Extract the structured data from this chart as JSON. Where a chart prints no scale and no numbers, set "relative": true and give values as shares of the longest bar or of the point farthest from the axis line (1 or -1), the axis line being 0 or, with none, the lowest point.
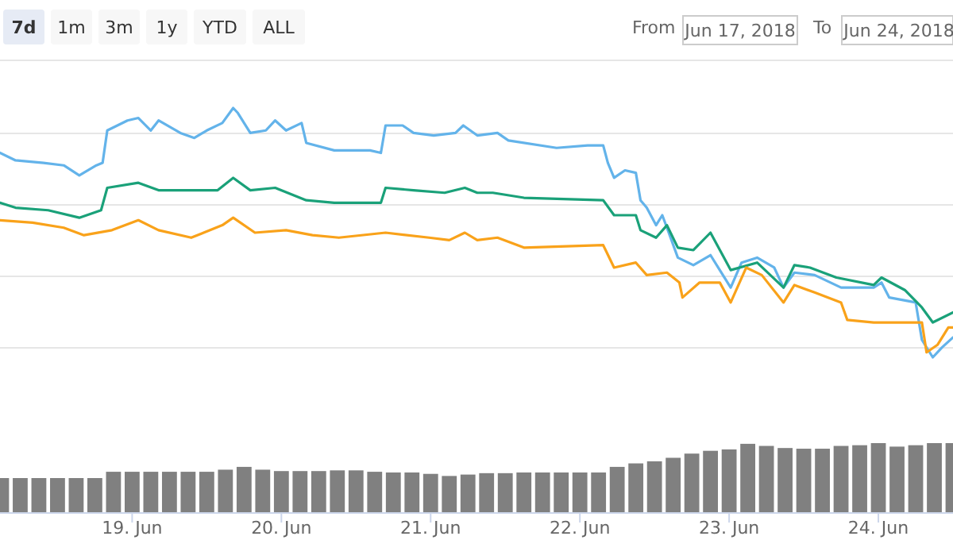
{
  "chart_data": [
    {
      "type": "line",
      "relative": true,
      "grid": true,
      "tick_labels": false,
      "xlim": [
        "2018-06-18T02:45",
        "2018-06-24T12:00"
      ],
      "annotations": [
        "7d",
        "1m",
        "3m",
        "1y",
        "YTD",
        "ALL",
        "From",
        "Jun 17, 2018",
        "To",
        "Jun 24, 2018"
      ],
      "series": [
        {
          "color": "#63b3ea",
          "x": [
            "2018-06-18T02:45",
            "2018-06-18T05:15",
            "2018-06-18T09:45",
            "2018-06-18T13:00",
            "2018-06-18T15:30",
            "2018-06-18T18:15",
            "2018-06-18T19:15",
            "2018-06-18T20:00",
            "2018-06-18T23:15",
            "2018-06-19T01:00",
            "2018-06-19T03:00",
            "2018-06-19T04:15",
            "2018-06-19T07:45",
            "2018-06-19T10:00",
            "2018-06-19T12:00",
            "2018-06-19T14:30",
            "2018-06-19T16:15",
            "2018-06-19T17:00",
            "2018-06-19T19:00",
            "2018-06-19T21:30",
            "2018-06-19T23:00",
            "2018-06-20T00:45",
            "2018-06-20T03:15",
            "2018-06-20T04:00",
            "2018-06-20T08:30",
            "2018-06-20T14:15",
            "2018-06-20T16:00",
            "2018-06-20T16:45",
            "2018-06-20T19:30",
            "2018-06-20T21:15",
            "2018-06-21T00:30",
            "2018-06-21T04:00",
            "2018-06-21T05:15",
            "2018-06-21T07:30",
            "2018-06-21T10:45",
            "2018-06-21T12:30",
            "2018-06-21T20:15",
            "2018-06-22T01:15",
            "2018-06-22T03:45",
            "2018-06-22T04:30",
            "2018-06-22T05:30",
            "2018-06-22T07:15",
            "2018-06-22T09:00",
            "2018-06-22T09:45",
            "2018-06-22T10:45",
            "2018-06-22T12:15",
            "2018-06-22T13:15",
            "2018-06-22T14:00",
            "2018-06-22T15:45",
            "2018-06-22T18:15",
            "2018-06-22T21:00",
            "2018-06-22T22:30",
            "2018-06-23T00:15",
            "2018-06-23T02:00",
            "2018-06-23T04:30",
            "2018-06-23T07:15",
            "2018-06-23T08:45",
            "2018-06-23T10:30",
            "2018-06-23T13:45",
            "2018-06-23T18:00",
            "2018-06-23T23:15",
            "2018-06-24T00:30",
            "2018-06-24T01:45",
            "2018-06-24T06:00",
            "2018-06-24T07:00",
            "2018-06-24T08:45",
            "2018-06-24T10:15",
            "2018-06-24T12:00"
          ],
          "values": [
            0.82,
            0.79,
            0.78,
            0.77,
            0.73,
            0.77,
            0.78,
            0.91,
            0.95,
            0.96,
            0.91,
            0.95,
            0.9,
            0.88,
            0.91,
            0.94,
            1.0,
            0.98,
            0.9,
            0.91,
            0.95,
            0.91,
            0.94,
            0.86,
            0.83,
            0.83,
            0.82,
            0.93,
            0.93,
            0.9,
            0.89,
            0.9,
            0.93,
            0.89,
            0.9,
            0.87,
            0.84,
            0.85,
            0.85,
            0.78,
            0.72,
            0.75,
            0.74,
            0.63,
            0.6,
            0.53,
            0.57,
            0.52,
            0.4,
            0.37,
            0.41,
            0.35,
            0.28,
            0.38,
            0.4,
            0.36,
            0.28,
            0.34,
            0.33,
            0.28,
            0.28,
            0.3,
            0.24,
            0.22,
            0.07,
            0,
            0.04,
            0.08
          ]
        },
        {
          "color": "#1aa179",
          "x": [
            "2018-06-18T02:45",
            "2018-06-18T05:15",
            "2018-06-18T10:30",
            "2018-06-18T15:30",
            "2018-06-18T19:00",
            "2018-06-18T20:00",
            "2018-06-19T01:00",
            "2018-06-19T04:15",
            "2018-06-19T09:30",
            "2018-06-19T13:45",
            "2018-06-19T16:15",
            "2018-06-19T19:00",
            "2018-06-19T23:00",
            "2018-06-20T04:00",
            "2018-06-20T08:30",
            "2018-06-20T16:00",
            "2018-06-20T16:45",
            "2018-06-20T21:15",
            "2018-06-21T02:15",
            "2018-06-21T05:30",
            "2018-06-21T07:30",
            "2018-06-21T10:00",
            "2018-06-21T15:00",
            "2018-06-22T03:45",
            "2018-06-22T05:30",
            "2018-06-22T09:00",
            "2018-06-22T09:45",
            "2018-06-22T12:15",
            "2018-06-22T14:00",
            "2018-06-22T15:45",
            "2018-06-22T18:15",
            "2018-06-22T21:00",
            "2018-06-23T00:15",
            "2018-06-23T04:30",
            "2018-06-23T08:45",
            "2018-06-23T10:30",
            "2018-06-23T13:00",
            "2018-06-23T17:15",
            "2018-06-23T23:15",
            "2018-06-24T00:30",
            "2018-06-24T04:15",
            "2018-06-24T07:00",
            "2018-06-24T08:45",
            "2018-06-24T12:00"
          ],
          "values": [
            0.62,
            0.6,
            0.59,
            0.56,
            0.59,
            0.68,
            0.7,
            0.67,
            0.67,
            0.67,
            0.72,
            0.67,
            0.68,
            0.63,
            0.62,
            0.62,
            0.68,
            0.67,
            0.66,
            0.68,
            0.66,
            0.66,
            0.64,
            0.63,
            0.57,
            0.57,
            0.51,
            0.48,
            0.53,
            0.44,
            0.43,
            0.5,
            0.35,
            0.38,
            0.28,
            0.37,
            0.36,
            0.32,
            0.29,
            0.32,
            0.27,
            0.2,
            0.14,
            0.18
          ]
        },
        {
          "color": "#f9a21a",
          "x": [
            "2018-06-18T02:45",
            "2018-06-18T08:00",
            "2018-06-18T13:00",
            "2018-06-18T16:15",
            "2018-06-18T20:45",
            "2018-06-19T01:00",
            "2018-06-19T04:15",
            "2018-06-19T09:30",
            "2018-06-19T14:30",
            "2018-06-19T16:15",
            "2018-06-19T19:45",
            "2018-06-20T00:45",
            "2018-06-20T05:00",
            "2018-06-20T09:15",
            "2018-06-20T16:45",
            "2018-06-20T23:45",
            "2018-06-21T03:00",
            "2018-06-21T05:30",
            "2018-06-21T07:30",
            "2018-06-21T10:45",
            "2018-06-21T15:00",
            "2018-06-22T03:45",
            "2018-06-22T05:30",
            "2018-06-22T09:00",
            "2018-06-22T10:45",
            "2018-06-22T14:00",
            "2018-06-22T16:00",
            "2018-06-22T16:30",
            "2018-06-22T19:15",
            "2018-06-22T22:30",
            "2018-06-23T00:15",
            "2018-06-23T02:45",
            "2018-06-23T05:15",
            "2018-06-23T08:45",
            "2018-06-23T10:30",
            "2018-06-23T13:45",
            "2018-06-23T18:00",
            "2018-06-23T19:00",
            "2018-06-23T23:15",
            "2018-06-24T07:00",
            "2018-06-24T07:45",
            "2018-06-24T09:30",
            "2018-06-24T11:15",
            "2018-06-24T12:00"
          ],
          "values": [
            0.55,
            0.54,
            0.52,
            0.49,
            0.51,
            0.55,
            0.51,
            0.48,
            0.53,
            0.56,
            0.5,
            0.51,
            0.49,
            0.48,
            0.5,
            0.48,
            0.47,
            0.5,
            0.47,
            0.48,
            0.44,
            0.45,
            0.36,
            0.38,
            0.33,
            0.34,
            0.3,
            0.24,
            0.3,
            0.3,
            0.22,
            0.36,
            0.33,
            0.22,
            0.29,
            0.26,
            0.22,
            0.15,
            0.14,
            0.14,
            0.02,
            0.05,
            0.12,
            0.12
          ]
        }
      ]
    },
    {
      "type": "bar",
      "relative": true,
      "tick_labels": "x",
      "color": "#808080",
      "xlim": [
        "2018-06-18T02:45",
        "2018-06-24T12:00"
      ],
      "xticks": [
        {
          "value": "2018-06-19",
          "label": "19. Jun"
        },
        {
          "value": "2018-06-20",
          "label": "20. Jun"
        },
        {
          "value": "2018-06-21",
          "label": "21. Jun"
        },
        {
          "value": "2018-06-22",
          "label": "22. Jun"
        },
        {
          "value": "2018-06-23",
          "label": "23. Jun"
        },
        {
          "value": "2018-06-24",
          "label": "24. Jun"
        }
      ],
      "x": [
        "2018-06-18T03:00",
        "2018-06-18T06:00",
        "2018-06-18T09:00",
        "2018-06-18T12:00",
        "2018-06-18T15:00",
        "2018-06-18T18:00",
        "2018-06-18T21:00",
        "2018-06-19T00:00",
        "2018-06-19T03:00",
        "2018-06-19T06:00",
        "2018-06-19T09:00",
        "2018-06-19T12:00",
        "2018-06-19T15:00",
        "2018-06-19T18:00",
        "2018-06-19T21:00",
        "2018-06-20T00:00",
        "2018-06-20T03:00",
        "2018-06-20T06:00",
        "2018-06-20T09:00",
        "2018-06-20T12:00",
        "2018-06-20T15:00",
        "2018-06-20T18:00",
        "2018-06-20T21:00",
        "2018-06-21T00:00",
        "2018-06-21T03:00",
        "2018-06-21T06:00",
        "2018-06-21T09:00",
        "2018-06-21T12:00",
        "2018-06-21T15:00",
        "2018-06-21T18:00",
        "2018-06-21T21:00",
        "2018-06-22T00:00",
        "2018-06-22T03:00",
        "2018-06-22T06:00",
        "2018-06-22T09:00",
        "2018-06-22T12:00",
        "2018-06-22T15:00",
        "2018-06-22T18:00",
        "2018-06-22T21:00",
        "2018-06-23T00:00",
        "2018-06-23T03:00",
        "2018-06-23T06:00",
        "2018-06-23T09:00",
        "2018-06-23T12:00",
        "2018-06-23T15:00",
        "2018-06-23T18:00",
        "2018-06-23T21:00",
        "2018-06-24T00:00",
        "2018-06-24T03:00",
        "2018-06-24T06:00",
        "2018-06-24T09:00",
        "2018-06-24T12:00"
      ],
      "values": [
        0.5,
        0.5,
        0.5,
        0.5,
        0.5,
        0.5,
        0.59,
        0.59,
        0.59,
        0.59,
        0.59,
        0.59,
        0.62,
        0.66,
        0.62,
        0.6,
        0.6,
        0.6,
        0.61,
        0.61,
        0.59,
        0.58,
        0.58,
        0.56,
        0.53,
        0.55,
        0.57,
        0.57,
        0.58,
        0.58,
        0.58,
        0.58,
        0.58,
        0.66,
        0.71,
        0.74,
        0.79,
        0.85,
        0.89,
        0.91,
        0.99,
        0.96,
        0.93,
        0.92,
        0.92,
        0.96,
        0.97,
        1.0,
        0.95,
        0.97,
        1.0,
        1.0
      ]
    }
  ]
}
